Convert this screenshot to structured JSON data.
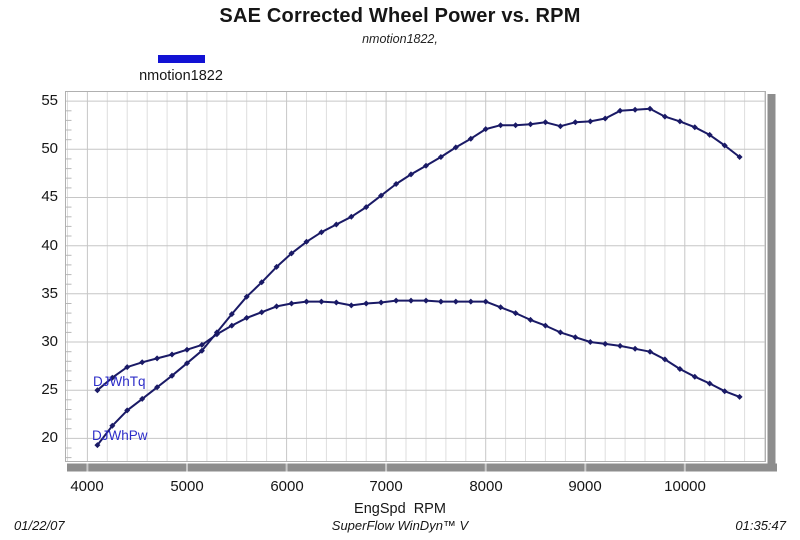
{
  "header": {
    "title": "SAE Corrected Wheel Power vs. RPM",
    "subtitle": "nmotion1822,"
  },
  "legend": {
    "label": "nmotion1822",
    "swatch_color": "#1212d4"
  },
  "axes": {
    "x_title": "EngSpd  RPM"
  },
  "footer": {
    "date": "01/22/07",
    "center": "SuperFlow WinDyn™ V",
    "time": "01:35:47"
  },
  "colors": {
    "curve": "#1a1a66",
    "curve_label": "#2d2dc8",
    "grid_major": "#c6c6c6",
    "grid_minor": "#dedede",
    "plot_border": "#b0b0b0",
    "shadow_bar": "#8d8d8d",
    "shadow_bar_notch": "#c9c9c9",
    "background": "#ffffff"
  },
  "chart_data": {
    "type": "line",
    "title": "SAE Corrected Wheel Power vs. RPM",
    "subtitle": "nmotion1822,",
    "xlabel": "EngSpd RPM",
    "ylabel": "",
    "legend_position": "top-left",
    "grid": true,
    "xlim": [
      3780,
      10810
    ],
    "ylim": [
      17.6,
      56.0
    ],
    "x_ticks": [
      4000,
      5000,
      6000,
      7000,
      8000,
      9000,
      10000
    ],
    "y_ticks": [
      20,
      25,
      30,
      35,
      40,
      45,
      50,
      55
    ],
    "x_minor_step": 200,
    "y_minor_step": 1,
    "line_color": "#1a1a66",
    "x": [
      4100,
      4250,
      4400,
      4550,
      4700,
      4850,
      5000,
      5150,
      5300,
      5450,
      5600,
      5750,
      5900,
      6050,
      6200,
      6350,
      6500,
      6650,
      6800,
      6950,
      7100,
      7250,
      7400,
      7550,
      7700,
      7850,
      8000,
      8150,
      8300,
      8450,
      8600,
      8750,
      8900,
      9050,
      9200,
      9350,
      9500,
      9650,
      9800,
      9950,
      10100,
      10250,
      10400,
      10550
    ],
    "series": [
      {
        "name": "DJWhTq",
        "values": [
          25.0,
          26.3,
          27.4,
          27.9,
          28.3,
          28.7,
          29.2,
          29.7,
          30.8,
          31.7,
          32.5,
          33.1,
          33.7,
          34.0,
          34.2,
          34.2,
          34.1,
          33.8,
          34.0,
          34.1,
          34.3,
          34.3,
          34.3,
          34.2,
          34.2,
          34.2,
          34.2,
          33.6,
          33.0,
          32.3,
          31.7,
          31.0,
          30.5,
          30.0,
          29.8,
          29.6,
          29.3,
          29.0,
          28.2,
          27.2,
          26.4,
          25.7,
          24.9,
          24.3
        ]
      },
      {
        "name": "DJWhPw",
        "values": [
          19.3,
          21.3,
          22.9,
          24.1,
          25.3,
          26.5,
          27.8,
          29.1,
          31.0,
          32.9,
          34.7,
          36.2,
          37.8,
          39.2,
          40.4,
          41.4,
          42.2,
          43.0,
          44.0,
          45.2,
          46.4,
          47.4,
          48.3,
          49.2,
          50.2,
          51.1,
          52.1,
          52.5,
          52.5,
          52.6,
          52.8,
          52.4,
          52.8,
          52.9,
          53.2,
          54.0,
          54.1,
          54.2,
          53.4,
          52.9,
          52.3,
          51.5,
          50.4,
          49.2
        ]
      }
    ]
  }
}
